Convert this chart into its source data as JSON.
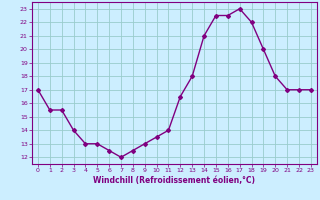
{
  "x": [
    0,
    1,
    2,
    3,
    4,
    5,
    6,
    7,
    8,
    9,
    10,
    11,
    12,
    13,
    14,
    15,
    16,
    17,
    18,
    19,
    20,
    21,
    22,
    23
  ],
  "y": [
    17,
    15.5,
    15.5,
    14,
    13,
    13,
    12.5,
    12,
    12.5,
    13,
    13.5,
    14,
    16.5,
    18,
    21,
    22.5,
    22.5,
    23,
    22,
    20,
    18,
    17,
    17,
    17
  ],
  "line_color": "#800080",
  "marker": "D",
  "marker_size": 2,
  "bg_color": "#cceeff",
  "grid_color": "#99cccc",
  "xlabel": "Windchill (Refroidissement éolien,°C)",
  "xlabel_color": "#800080",
  "tick_color": "#800080",
  "ylim": [
    11.5,
    23.5
  ],
  "yticks": [
    12,
    13,
    14,
    15,
    16,
    17,
    18,
    19,
    20,
    21,
    22,
    23
  ],
  "xlim": [
    -0.5,
    23.5
  ],
  "xticks": [
    0,
    1,
    2,
    3,
    4,
    5,
    6,
    7,
    8,
    9,
    10,
    11,
    12,
    13,
    14,
    15,
    16,
    17,
    18,
    19,
    20,
    21,
    22,
    23
  ]
}
